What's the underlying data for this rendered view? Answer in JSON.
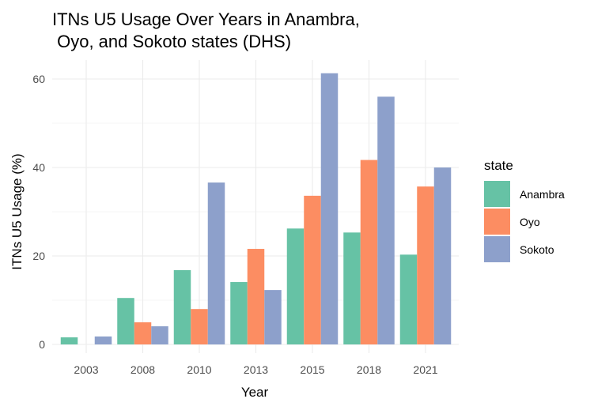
{
  "chart_data": {
    "type": "bar",
    "title_lines": [
      "ITNs U5 Usage Over Years in Anambra,",
      " Oyo, and Sokoto states (DHS)"
    ],
    "xlabel": "Year",
    "ylabel": "ITNs U5 Usage (%)",
    "categories": [
      "2003",
      "2008",
      "2010",
      "2013",
      "2015",
      "2018",
      "2021"
    ],
    "yticks": [
      0,
      20,
      40,
      60
    ],
    "ylim": [
      0,
      63
    ],
    "grid": true,
    "legend_title": "state",
    "legend_position": "right",
    "series": [
      {
        "name": "Anambra",
        "color": "#66c2a5",
        "values": [
          1.6,
          10.5,
          16.8,
          14.1,
          26.2,
          25.3,
          20.3
        ]
      },
      {
        "name": "Oyo",
        "color": "#fc8d62",
        "values": [
          0,
          5.0,
          8.0,
          21.6,
          33.6,
          41.7,
          35.7
        ]
      },
      {
        "name": "Sokoto",
        "color": "#8da0cb",
        "values": [
          1.8,
          4.1,
          36.6,
          12.3,
          61.3,
          56.0,
          40.0
        ]
      }
    ]
  }
}
